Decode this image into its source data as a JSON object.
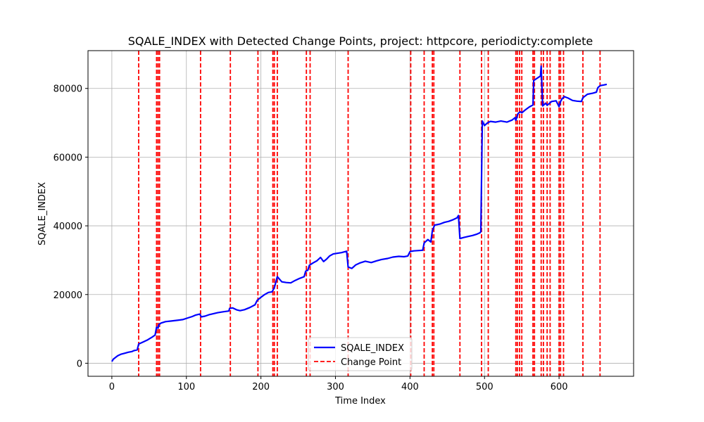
{
  "chart_data": {
    "type": "line",
    "title": "SQALE_INDEX with Detected Change Points, project: httpcore, periodicty:complete",
    "xlabel": "Time Index",
    "ylabel": "SQALE_INDEX",
    "xlim": [
      -32,
      700
    ],
    "ylim": [
      -3800,
      91000
    ],
    "xticks": [
      0,
      100,
      200,
      300,
      400,
      500,
      600
    ],
    "yticks": [
      0,
      20000,
      40000,
      60000,
      80000
    ],
    "grid": true,
    "legend_position": "bottom-center",
    "series": [
      {
        "name": "SQALE_INDEX",
        "color": "#0000ff",
        "x": [
          0,
          2,
          5,
          8,
          12,
          17,
          22,
          27,
          30,
          34,
          36,
          37,
          42,
          48,
          54,
          58,
          60,
          62,
          63,
          66,
          72,
          80,
          88,
          95,
          102,
          108,
          112,
          118,
          120,
          125,
          130,
          136,
          142,
          150,
          157,
          158,
          162,
          168,
          172,
          178,
          185,
          192,
          195,
          200,
          205,
          210,
          215,
          218,
          222,
          228,
          234,
          240,
          246,
          252,
          258,
          260,
          263,
          265,
          270,
          275,
          280,
          284,
          288,
          292,
          297,
          302,
          308,
          315,
          317,
          322,
          327,
          333,
          340,
          348,
          355,
          362,
          370,
          377,
          385,
          392,
          397,
          400,
          405,
          412,
          417,
          419,
          424,
          428,
          430,
          433,
          440,
          446,
          452,
          458,
          463,
          465,
          467,
          472,
          478,
          484,
          490,
          494,
          495,
          497,
          500,
          504,
          508,
          515,
          522,
          530,
          537,
          541,
          542,
          545,
          548,
          550,
          555,
          560,
          565,
          566,
          570,
          575,
          576,
          578,
          580,
          582,
          584,
          590,
          596,
          600,
          602,
          604,
          607,
          612,
          618,
          624,
          630,
          632,
          638,
          645,
          650,
          652,
          655,
          660,
          664
        ],
        "y": [
          500,
          1200,
          1700,
          2200,
          2600,
          2900,
          3200,
          3400,
          3700,
          3900,
          5600,
          5700,
          6200,
          6800,
          7600,
          8200,
          10500,
          10200,
          11200,
          11700,
          12100,
          12300,
          12500,
          12700,
          13200,
          13600,
          14000,
          14300,
          13500,
          13700,
          14100,
          14400,
          14700,
          15000,
          15200,
          16000,
          16100,
          15500,
          15300,
          15600,
          16200,
          17000,
          18300,
          19200,
          20000,
          20600,
          20800,
          22000,
          25200,
          23700,
          23500,
          23400,
          24100,
          24700,
          25200,
          26800,
          27100,
          28500,
          29200,
          29800,
          30800,
          29600,
          30300,
          31200,
          31800,
          32000,
          32200,
          32600,
          28000,
          27600,
          28600,
          29200,
          29700,
          29300,
          29800,
          30200,
          30500,
          30900,
          31100,
          31000,
          31200,
          32500,
          32700,
          32800,
          32900,
          35000,
          36000,
          35300,
          38500,
          40200,
          40500,
          41000,
          41300,
          41800,
          42300,
          43000,
          36300,
          36600,
          36900,
          37200,
          37600,
          38000,
          38300,
          70500,
          69200,
          70000,
          70400,
          70200,
          70500,
          70200,
          70800,
          71500,
          70700,
          72700,
          73200,
          72900,
          73800,
          74600,
          75200,
          82300,
          82900,
          83600,
          86500,
          74900,
          75300,
          75700,
          75100,
          76200,
          76400,
          74700,
          76200,
          77000,
          77600,
          77200,
          76500,
          76300,
          76200,
          77300,
          78300,
          78600,
          78900,
          80200,
          80800,
          81000,
          81200
        ]
      }
    ],
    "change_points": {
      "name": "Change Point",
      "color": "#ff0000",
      "x": [
        36,
        60,
        62,
        64,
        119,
        159,
        196,
        216,
        218,
        222,
        261,
        266,
        317,
        401,
        419,
        430,
        432,
        467,
        496,
        505,
        542,
        544,
        547,
        550,
        565,
        567,
        576,
        579,
        584,
        588,
        600,
        602,
        606,
        632,
        655
      ]
    }
  }
}
